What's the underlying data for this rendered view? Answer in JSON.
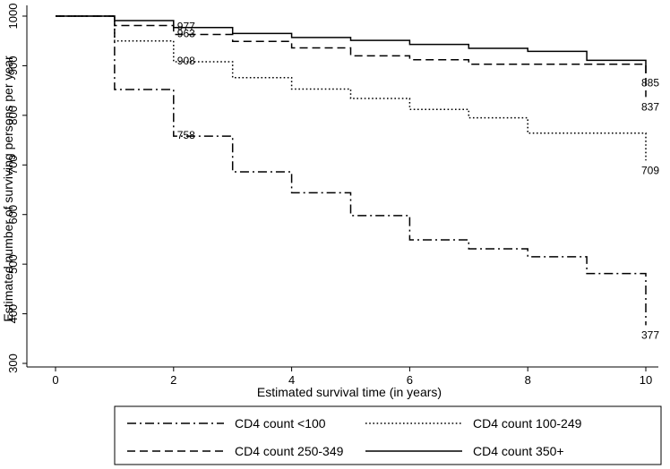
{
  "chart_data": {
    "type": "line",
    "step": true,
    "title": "",
    "xlabel": "Estimated survival time (in years)",
    "ylabel": "Estimated number of surviving persons per year",
    "xlim": [
      0,
      10
    ],
    "ylim": [
      300,
      1000
    ],
    "xticks": [
      0,
      2,
      4,
      6,
      8,
      10
    ],
    "yticks": [
      300,
      400,
      500,
      600,
      700,
      800,
      900,
      1000
    ],
    "grid": false,
    "legend_position": "bottom",
    "series": [
      {
        "name": "CD4 count <100",
        "dash": "dashdot",
        "x": [
          0,
          1,
          2,
          3,
          4,
          5,
          6,
          7,
          8,
          9,
          10
        ],
        "y": [
          1000,
          852,
          758,
          686,
          644,
          598,
          549,
          531,
          515,
          481,
          377
        ]
      },
      {
        "name": "CD4 count 100-249",
        "dash": "dotted",
        "x": [
          0,
          1,
          2,
          3,
          4,
          5,
          6,
          7,
          8,
          9,
          10
        ],
        "y": [
          1000,
          950,
          908,
          876,
          853,
          834,
          812,
          795,
          764,
          764,
          709
        ]
      },
      {
        "name": "CD4 count 250-349",
        "dash": "dashed",
        "x": [
          0,
          1,
          2,
          3,
          4,
          5,
          6,
          7,
          8,
          9,
          10
        ],
        "y": [
          1000,
          981,
          963,
          949,
          936,
          920,
          912,
          903,
          903,
          903,
          837
        ]
      },
      {
        "name": "CD4 count 350+",
        "dash": "solid",
        "x": [
          0,
          1,
          2,
          3,
          4,
          5,
          6,
          7,
          8,
          9,
          10
        ],
        "y": [
          1000,
          991,
          977,
          965,
          957,
          951,
          943,
          935,
          929,
          911,
          885
        ]
      }
    ],
    "annotations": [
      {
        "label": "977",
        "x": 2,
        "y": 977,
        "series": "CD4 count 350+"
      },
      {
        "label": "963",
        "x": 2,
        "y": 963,
        "series": "CD4 count 250-349"
      },
      {
        "label": "908",
        "x": 2,
        "y": 908,
        "series": "CD4 count 100-249"
      },
      {
        "label": "758",
        "x": 2,
        "y": 758,
        "series": "CD4 count <100"
      },
      {
        "label": "885",
        "x": 10,
        "y": 885,
        "series": "CD4 count 350+"
      },
      {
        "label": "837",
        "x": 10,
        "y": 837,
        "series": "CD4 count 250-349"
      },
      {
        "label": "709",
        "x": 10,
        "y": 709,
        "series": "CD4 count 100-249"
      },
      {
        "label": "377",
        "x": 10,
        "y": 377,
        "series": "CD4 count <100"
      }
    ]
  }
}
